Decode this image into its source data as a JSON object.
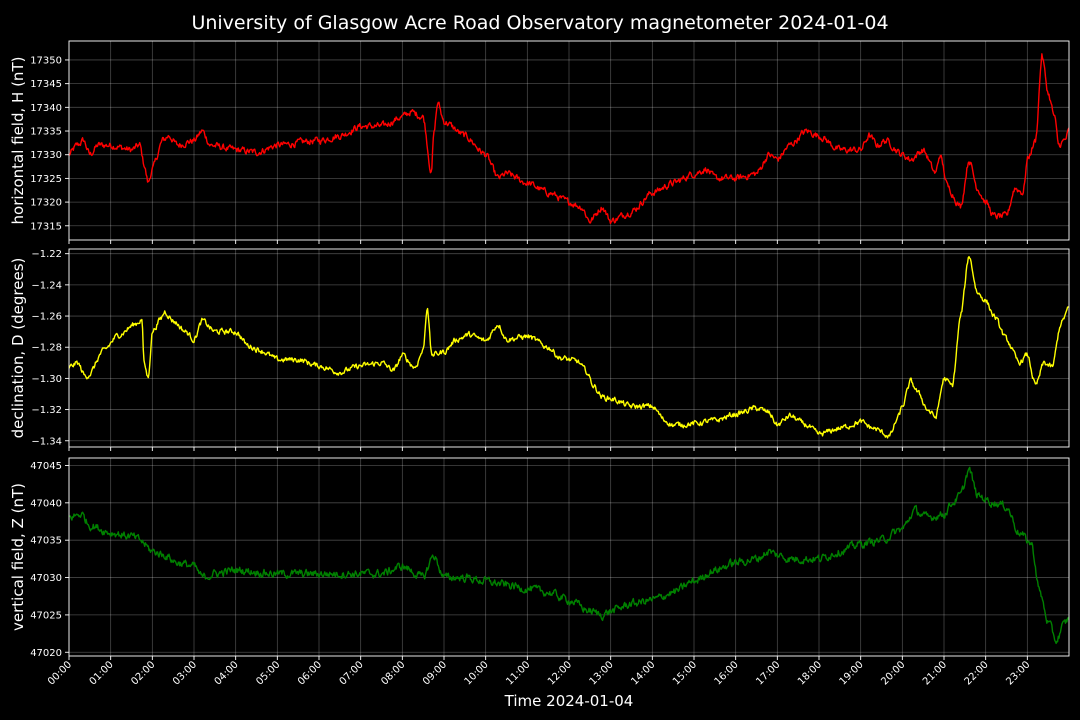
{
  "chart_data": {
    "type": "line",
    "title": "University of Glasgow Acre Road Observatory magnetometer 2024-01-04",
    "xlabel": "Time 2024-01-04",
    "x_tick_labels": [
      "00:00",
      "01:00",
      "02:00",
      "03:00",
      "04:00",
      "05:00",
      "06:00",
      "07:00",
      "08:00",
      "09:00",
      "10:00",
      "11:00",
      "12:00",
      "13:00",
      "14:00",
      "15:00",
      "16:00",
      "17:00",
      "18:00",
      "19:00",
      "20:00",
      "21:00",
      "22:00",
      "23:00"
    ],
    "xlim_hours": [
      0,
      24
    ],
    "grid": true,
    "panels": [
      {
        "id": "h",
        "ylabel": "horizontal field, H (nT)",
        "color": "#ff0000",
        "ylim": [
          17312,
          17354
        ],
        "yticks": [
          17315,
          17320,
          17325,
          17330,
          17335,
          17340,
          17345,
          17350
        ],
        "ytick_labels": [
          "17315",
          "17320",
          "17325",
          "17330",
          "17335",
          "17340",
          "17345",
          "17350"
        ],
        "noise": 0.6,
        "points": [
          [
            0.0,
            17330
          ],
          [
            0.2,
            17332
          ],
          [
            0.35,
            17333
          ],
          [
            0.5,
            17330
          ],
          [
            0.7,
            17332
          ],
          [
            1.0,
            17332
          ],
          [
            1.5,
            17331
          ],
          [
            1.7,
            17332
          ],
          [
            1.8,
            17328
          ],
          [
            1.9,
            17324
          ],
          [
            2.0,
            17327
          ],
          [
            2.25,
            17333
          ],
          [
            2.4,
            17334
          ],
          [
            2.6,
            17332
          ],
          [
            3.0,
            17333
          ],
          [
            3.2,
            17335
          ],
          [
            3.4,
            17332
          ],
          [
            4.0,
            17331
          ],
          [
            4.5,
            17330.5
          ],
          [
            5.0,
            17332
          ],
          [
            6.0,
            17333
          ],
          [
            6.5,
            17334
          ],
          [
            7.0,
            17336
          ],
          [
            7.5,
            17336
          ],
          [
            8.0,
            17338
          ],
          [
            8.2,
            17339
          ],
          [
            8.5,
            17338
          ],
          [
            8.7,
            17326
          ],
          [
            8.75,
            17334
          ],
          [
            8.85,
            17341
          ],
          [
            9.0,
            17337
          ],
          [
            9.5,
            17334
          ],
          [
            10.0,
            17330
          ],
          [
            10.3,
            17325
          ],
          [
            10.5,
            17326
          ],
          [
            11.0,
            17324
          ],
          [
            11.5,
            17322
          ],
          [
            12.0,
            17320
          ],
          [
            12.3,
            17319
          ],
          [
            12.5,
            17316
          ],
          [
            12.8,
            17319
          ],
          [
            13.0,
            17316
          ],
          [
            13.5,
            17318
          ],
          [
            14.0,
            17322
          ],
          [
            14.5,
            17324
          ],
          [
            15.0,
            17326
          ],
          [
            15.3,
            17327
          ],
          [
            15.5,
            17325
          ],
          [
            16.0,
            17325
          ],
          [
            16.5,
            17326
          ],
          [
            16.8,
            17330
          ],
          [
            17.0,
            17329
          ],
          [
            17.3,
            17332
          ],
          [
            17.7,
            17335
          ],
          [
            18.0,
            17334
          ],
          [
            18.5,
            17331
          ],
          [
            19.0,
            17331
          ],
          [
            19.2,
            17334
          ],
          [
            19.4,
            17332
          ],
          [
            19.6,
            17333
          ],
          [
            20.0,
            17330
          ],
          [
            20.2,
            17329
          ],
          [
            20.5,
            17331
          ],
          [
            20.8,
            17326
          ],
          [
            20.9,
            17330
          ],
          [
            21.1,
            17323
          ],
          [
            21.4,
            17319
          ],
          [
            21.6,
            17329
          ],
          [
            21.8,
            17323
          ],
          [
            22.0,
            17320
          ],
          [
            22.2,
            17317
          ],
          [
            22.5,
            17317
          ],
          [
            22.7,
            17323
          ],
          [
            22.9,
            17322
          ],
          [
            23.0,
            17329
          ],
          [
            23.2,
            17333
          ],
          [
            23.35,
            17351
          ],
          [
            23.5,
            17343
          ],
          [
            23.65,
            17338
          ],
          [
            23.75,
            17332
          ],
          [
            23.9,
            17333
          ],
          [
            24.0,
            17335
          ]
        ]
      },
      {
        "id": "d",
        "ylabel": "declination, D (degrees)",
        "color": "#ffff00",
        "ylim": [
          -1.344,
          -1.217
        ],
        "yticks": [
          -1.34,
          -1.32,
          -1.3,
          -1.28,
          -1.26,
          -1.24,
          -1.22
        ],
        "ytick_labels": [
          "−1.34",
          "−1.32",
          "−1.30",
          "−1.28",
          "−1.26",
          "−1.24",
          "−1.22"
        ],
        "noise": 0.0015,
        "points": [
          [
            0.0,
            -1.293
          ],
          [
            0.2,
            -1.29
          ],
          [
            0.4,
            -1.299
          ],
          [
            0.5,
            -1.297
          ],
          [
            0.8,
            -1.283
          ],
          [
            1.2,
            -1.272
          ],
          [
            1.6,
            -1.265
          ],
          [
            1.75,
            -1.262
          ],
          [
            1.8,
            -1.29
          ],
          [
            1.9,
            -1.3
          ],
          [
            2.0,
            -1.27
          ],
          [
            2.2,
            -1.262
          ],
          [
            2.3,
            -1.257
          ],
          [
            2.5,
            -1.263
          ],
          [
            2.8,
            -1.27
          ],
          [
            3.0,
            -1.275
          ],
          [
            3.2,
            -1.263
          ],
          [
            3.5,
            -1.27
          ],
          [
            4.0,
            -1.27
          ],
          [
            4.3,
            -1.279
          ],
          [
            4.6,
            -1.282
          ],
          [
            5.0,
            -1.288
          ],
          [
            5.5,
            -1.288
          ],
          [
            6.0,
            -1.292
          ],
          [
            6.5,
            -1.296
          ],
          [
            7.0,
            -1.292
          ],
          [
            7.5,
            -1.29
          ],
          [
            7.8,
            -1.295
          ],
          [
            8.0,
            -1.285
          ],
          [
            8.3,
            -1.293
          ],
          [
            8.5,
            -1.282
          ],
          [
            8.6,
            -1.253
          ],
          [
            8.7,
            -1.285
          ],
          [
            9.0,
            -1.283
          ],
          [
            9.3,
            -1.275
          ],
          [
            9.6,
            -1.272
          ],
          [
            10.0,
            -1.276
          ],
          [
            10.3,
            -1.265
          ],
          [
            10.5,
            -1.275
          ],
          [
            11.0,
            -1.273
          ],
          [
            11.5,
            -1.28
          ],
          [
            11.8,
            -1.287
          ],
          [
            12.2,
            -1.289
          ],
          [
            12.4,
            -1.295
          ],
          [
            12.6,
            -1.305
          ],
          [
            12.8,
            -1.312
          ],
          [
            13.0,
            -1.313
          ],
          [
            13.5,
            -1.318
          ],
          [
            14.0,
            -1.318
          ],
          [
            14.3,
            -1.327
          ],
          [
            14.5,
            -1.33
          ],
          [
            15.0,
            -1.329
          ],
          [
            15.5,
            -1.327
          ],
          [
            16.0,
            -1.323
          ],
          [
            16.5,
            -1.319
          ],
          [
            16.8,
            -1.322
          ],
          [
            17.0,
            -1.33
          ],
          [
            17.3,
            -1.324
          ],
          [
            17.7,
            -1.33
          ],
          [
            18.0,
            -1.336
          ],
          [
            18.5,
            -1.332
          ],
          [
            19.0,
            -1.328
          ],
          [
            19.3,
            -1.332
          ],
          [
            19.7,
            -1.337
          ],
          [
            19.9,
            -1.325
          ],
          [
            20.0,
            -1.318
          ],
          [
            20.2,
            -1.302
          ],
          [
            20.4,
            -1.31
          ],
          [
            20.6,
            -1.32
          ],
          [
            20.8,
            -1.325
          ],
          [
            21.0,
            -1.3
          ],
          [
            21.2,
            -1.305
          ],
          [
            21.4,
            -1.26
          ],
          [
            21.6,
            -1.221
          ],
          [
            21.8,
            -1.245
          ],
          [
            22.0,
            -1.25
          ],
          [
            22.2,
            -1.26
          ],
          [
            22.5,
            -1.275
          ],
          [
            22.8,
            -1.29
          ],
          [
            23.0,
            -1.285
          ],
          [
            23.2,
            -1.305
          ],
          [
            23.4,
            -1.29
          ],
          [
            23.6,
            -1.293
          ],
          [
            23.8,
            -1.265
          ],
          [
            24.0,
            -1.255
          ]
        ]
      },
      {
        "id": "z",
        "ylabel": "vertical field, Z (nT)",
        "color": "#008000",
        "ylim": [
          47019.5,
          47046
        ],
        "yticks": [
          47020,
          47025,
          47030,
          47035,
          47040,
          47045
        ],
        "ytick_labels": [
          "47020",
          "47025",
          "47030",
          "47035",
          "47040",
          "47045"
        ],
        "noise": 0.45,
        "points": [
          [
            0.0,
            47038
          ],
          [
            0.3,
            47038.5
          ],
          [
            0.5,
            47037
          ],
          [
            1.0,
            47036
          ],
          [
            1.5,
            47035.5
          ],
          [
            1.7,
            47035
          ],
          [
            2.0,
            47033.5
          ],
          [
            2.3,
            47033
          ],
          [
            2.6,
            47032
          ],
          [
            3.0,
            47031.5
          ],
          [
            3.2,
            47030
          ],
          [
            3.5,
            47030.5
          ],
          [
            4.0,
            47031
          ],
          [
            5.0,
            47030.5
          ],
          [
            6.0,
            47030.5
          ],
          [
            7.0,
            47030.5
          ],
          [
            7.5,
            47030.5
          ],
          [
            8.0,
            47031.5
          ],
          [
            8.5,
            47030
          ],
          [
            8.75,
            47033
          ],
          [
            9.0,
            47030
          ],
          [
            9.5,
            47030
          ],
          [
            10.0,
            47029.5
          ],
          [
            10.5,
            47029
          ],
          [
            11.0,
            47028.5
          ],
          [
            11.5,
            47028
          ],
          [
            12.0,
            47027
          ],
          [
            12.5,
            47025.5
          ],
          [
            12.8,
            47025
          ],
          [
            13.0,
            47025.5
          ],
          [
            13.5,
            47026.5
          ],
          [
            14.0,
            47027
          ],
          [
            14.5,
            47028
          ],
          [
            15.0,
            47029.5
          ],
          [
            15.5,
            47031
          ],
          [
            16.0,
            47032
          ],
          [
            16.5,
            47032.5
          ],
          [
            16.8,
            47033.5
          ],
          [
            17.0,
            47033
          ],
          [
            17.3,
            47032.5
          ],
          [
            18.0,
            47032.5
          ],
          [
            18.5,
            47033.5
          ],
          [
            19.0,
            47034.5
          ],
          [
            19.5,
            47035
          ],
          [
            20.0,
            47036.5
          ],
          [
            20.3,
            47039
          ],
          [
            20.6,
            47038
          ],
          [
            21.0,
            47038.5
          ],
          [
            21.2,
            47040
          ],
          [
            21.4,
            47041
          ],
          [
            21.6,
            47044.5
          ],
          [
            21.8,
            47041
          ],
          [
            22.2,
            47040
          ],
          [
            22.5,
            47039.5
          ],
          [
            22.8,
            47036
          ],
          [
            23.1,
            47034.5
          ],
          [
            23.3,
            47028
          ],
          [
            23.5,
            47024
          ],
          [
            23.7,
            47021.5
          ],
          [
            23.85,
            47023.5
          ],
          [
            24.0,
            47024.5
          ]
        ]
      }
    ]
  }
}
